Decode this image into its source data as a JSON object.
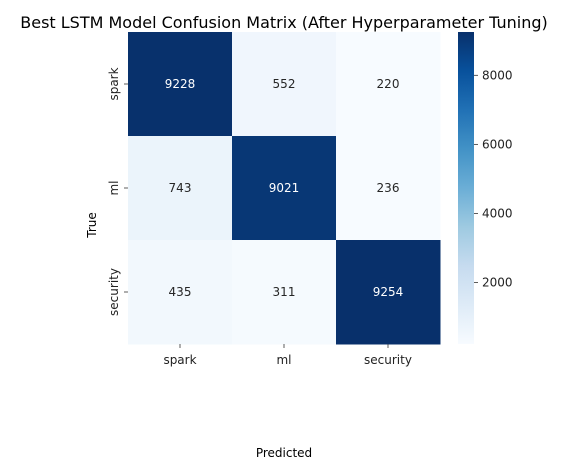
{
  "chart_data": {
    "type": "heatmap",
    "title": "Best LSTM Model Confusion Matrix (After Hyperparameter Tuning)",
    "xlabel": "Predicted",
    "ylabel": "True",
    "x_categories": [
      "spark",
      "ml",
      "security"
    ],
    "y_categories": [
      "spark",
      "ml",
      "security"
    ],
    "values": [
      [
        9228,
        552,
        220
      ],
      [
        743,
        9021,
        236
      ],
      [
        435,
        311,
        9254
      ]
    ],
    "colorbar": {
      "colormap": "Blues",
      "range": [
        220,
        9254
      ],
      "ticks": [
        2000,
        4000,
        6000,
        8000
      ]
    },
    "grid": false
  }
}
